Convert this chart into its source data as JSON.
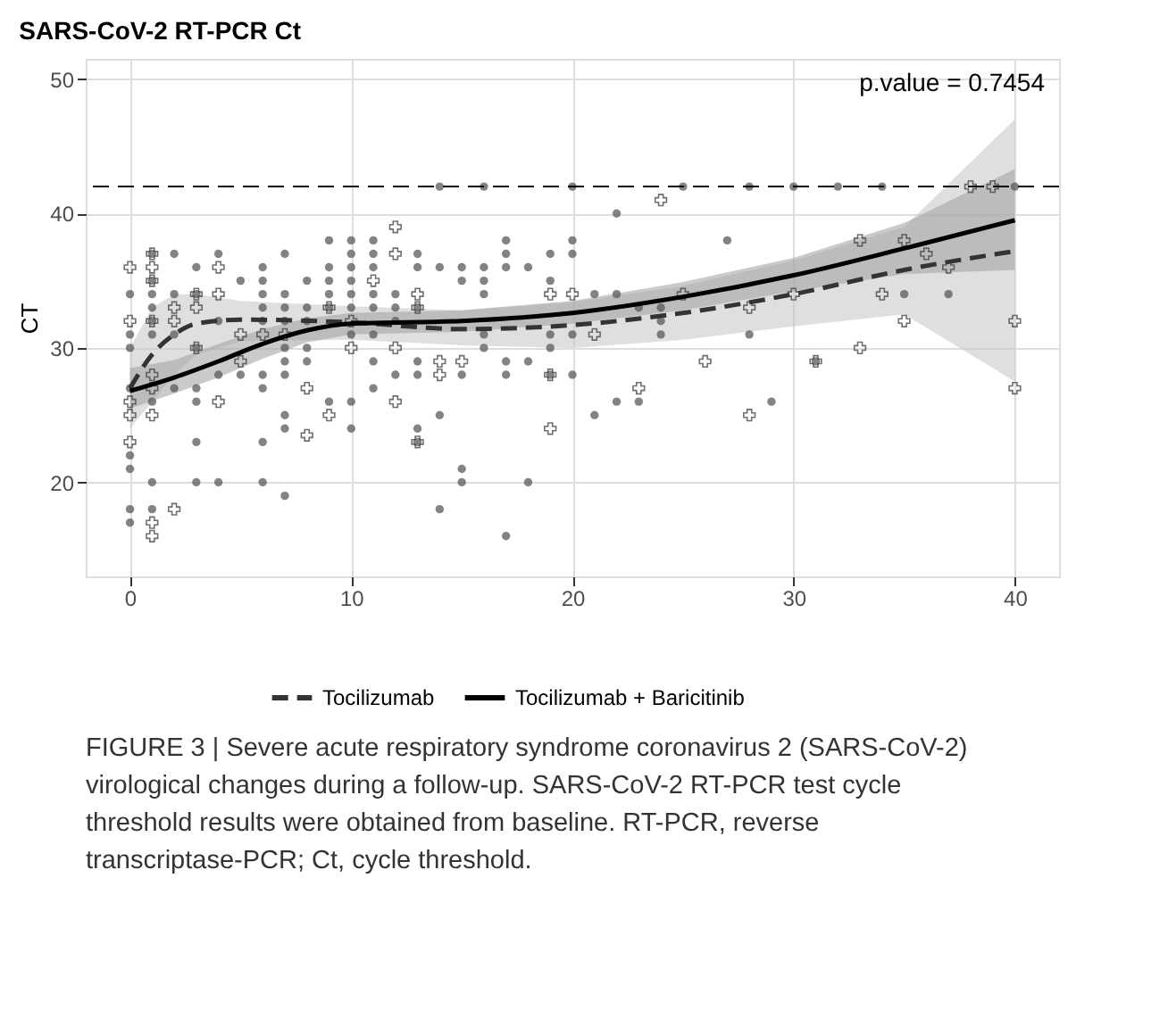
{
  "chart_data": {
    "type": "scatter",
    "title": "SARS-CoV-2 RT-PCR Ct",
    "ylabel": "CT",
    "xlim": [
      -2,
      42
    ],
    "ylim": [
      13,
      51.5
    ],
    "xticks": [
      0,
      10,
      20,
      30,
      40
    ],
    "yticks": [
      20,
      30,
      40,
      50
    ],
    "grid": true,
    "legend": "bottom",
    "ref_lines": [
      {
        "axis": "y",
        "value": 42,
        "label": null,
        "color": "#000000",
        "line_style": "dashed"
      }
    ],
    "annotations": [
      "p.value = 0.7454",
      "FIGURE 3 | Severe acute respiratory syndrome coronavirus 2 (SARS-CoV-2) virological changes during a follow-up. SARS-CoV-2 RT-PCR test cycle threshold results were obtained from baseline. RT-PCR, reverse transcriptase-PCR; Ct, cycle threshold."
    ],
    "series": [
      {
        "marker": "circle",
        "color": "#595959",
        "x": [
          0,
          0,
          0,
          0,
          0,
          0,
          0,
          0,
          1,
          1,
          1,
          1,
          1,
          1,
          1,
          1,
          1,
          2,
          2,
          2,
          2,
          3,
          3,
          3,
          3,
          3,
          3,
          3,
          4,
          4,
          4,
          4,
          5,
          5,
          6,
          6,
          6,
          6,
          6,
          6,
          6,
          6,
          6,
          7,
          7,
          7,
          7,
          7,
          7,
          7,
          7,
          7,
          7,
          8,
          8,
          8,
          8,
          8,
          9,
          9,
          9,
          9,
          9,
          9,
          10,
          10,
          10,
          10,
          10,
          10,
          10,
          10,
          10,
          11,
          11,
          11,
          11,
          11,
          11,
          11,
          11,
          12,
          12,
          12,
          12,
          13,
          13,
          13,
          13,
          13,
          13,
          13,
          14,
          14,
          14,
          14,
          15,
          15,
          15,
          15,
          15,
          16,
          16,
          16,
          16,
          16,
          16,
          17,
          17,
          17,
          17,
          17,
          17,
          18,
          18,
          18,
          19,
          19,
          19,
          19,
          19,
          20,
          20,
          20,
          20,
          20,
          21,
          21,
          22,
          22,
          22,
          23,
          23,
          24,
          24,
          24,
          25,
          27,
          28,
          28,
          29,
          30,
          31,
          32,
          34,
          35,
          37,
          40
        ],
        "values": [
          34,
          31,
          30,
          27,
          22,
          21,
          18,
          17,
          37,
          35,
          34,
          33,
          32,
          31,
          26,
          20,
          18,
          37,
          34,
          31,
          27,
          36,
          34,
          30,
          27,
          26,
          23,
          20,
          37,
          32,
          28,
          20,
          35,
          28,
          36,
          35,
          34,
          33,
          32,
          28,
          27,
          23,
          20,
          37,
          34,
          33,
          32,
          30,
          29,
          28,
          25,
          24,
          19,
          35,
          33,
          32,
          30,
          29,
          38,
          36,
          35,
          34,
          33,
          26,
          38,
          37,
          36,
          35,
          34,
          33,
          31,
          26,
          24,
          38,
          37,
          36,
          34,
          33,
          31,
          29,
          27,
          34,
          33,
          32,
          28,
          37,
          36,
          33,
          29,
          28,
          24,
          23,
          42,
          36,
          25,
          18,
          36,
          35,
          28,
          21,
          20,
          42,
          36,
          35,
          34,
          31,
          30,
          38,
          37,
          36,
          29,
          28,
          16,
          36,
          29,
          20,
          37,
          35,
          31,
          30,
          28,
          42,
          38,
          37,
          31,
          28,
          34,
          25,
          40,
          34,
          26,
          33,
          26,
          33,
          32,
          31,
          42,
          38,
          42,
          31,
          26,
          42,
          29,
          42,
          42,
          34,
          34,
          42
        ]
      },
      {
        "marker": "cross",
        "color": "#404040",
        "x": [
          0,
          0,
          0,
          0,
          0,
          1,
          1,
          1,
          1,
          1,
          1,
          1,
          1,
          1,
          2,
          2,
          2,
          3,
          3,
          3,
          4,
          4,
          4,
          5,
          5,
          6,
          7,
          8,
          8,
          9,
          9,
          10,
          10,
          11,
          12,
          12,
          12,
          12,
          13,
          13,
          13,
          14,
          14,
          15,
          19,
          19,
          19,
          20,
          21,
          23,
          24,
          25,
          26,
          28,
          28,
          30,
          31,
          33,
          33,
          34,
          35,
          35,
          36,
          37,
          38,
          39,
          40,
          40
        ],
        "values": [
          36,
          32,
          26,
          25,
          23,
          37,
          36,
          35,
          32,
          28,
          27,
          25,
          17,
          16,
          33,
          32,
          18,
          34,
          33,
          30,
          36,
          34,
          26,
          31,
          29,
          31,
          31,
          27,
          23.5,
          33,
          25,
          32,
          30,
          35,
          39,
          37,
          30,
          26,
          34,
          33,
          23,
          29,
          28,
          29,
          34,
          28,
          24,
          34,
          31,
          27,
          41,
          34,
          29,
          33,
          25,
          34,
          29,
          38,
          30,
          34,
          38,
          32,
          37,
          36,
          42,
          42,
          32,
          27
        ]
      },
      {
        "type": "line",
        "name": "Tocilizumab",
        "color": "#333333",
        "line_style": "dashed",
        "x": [
          0,
          1,
          2,
          3,
          5,
          10,
          15,
          20,
          25,
          30,
          35,
          40
        ],
        "values": [
          27,
          29.5,
          31,
          31.8,
          32.1,
          31.9,
          31.4,
          31.7,
          32.6,
          34,
          35.8,
          37.2
        ],
        "lower": [
          24,
          26,
          28,
          29.5,
          30.5,
          30.6,
          30.2,
          30,
          30.6,
          31.6,
          32.5,
          27.5
        ],
        "upper": [
          30,
          33,
          34,
          34,
          33.5,
          33.1,
          32.8,
          33.4,
          34.6,
          36.5,
          39,
          47
        ]
      },
      {
        "type": "line",
        "name": "Tocilizumab + Baricitinib",
        "color": "#000000",
        "line_style": "solid",
        "x": [
          0,
          2,
          4,
          6,
          8,
          10,
          15,
          20,
          25,
          30,
          35,
          40
        ],
        "values": [
          26.8,
          27.8,
          29,
          30.3,
          31.3,
          31.8,
          32,
          32.6,
          33.8,
          35.4,
          37.4,
          39.5
        ],
        "lower": [
          25.5,
          26.6,
          27.8,
          29.2,
          30.4,
          31,
          31.2,
          31.8,
          32.8,
          34.2,
          35.5,
          35.8
        ],
        "upper": [
          28.5,
          29.1,
          30.3,
          31.4,
          32.2,
          32.6,
          32.8,
          33.5,
          34.9,
          36.7,
          39.3,
          43.3
        ]
      }
    ]
  }
}
